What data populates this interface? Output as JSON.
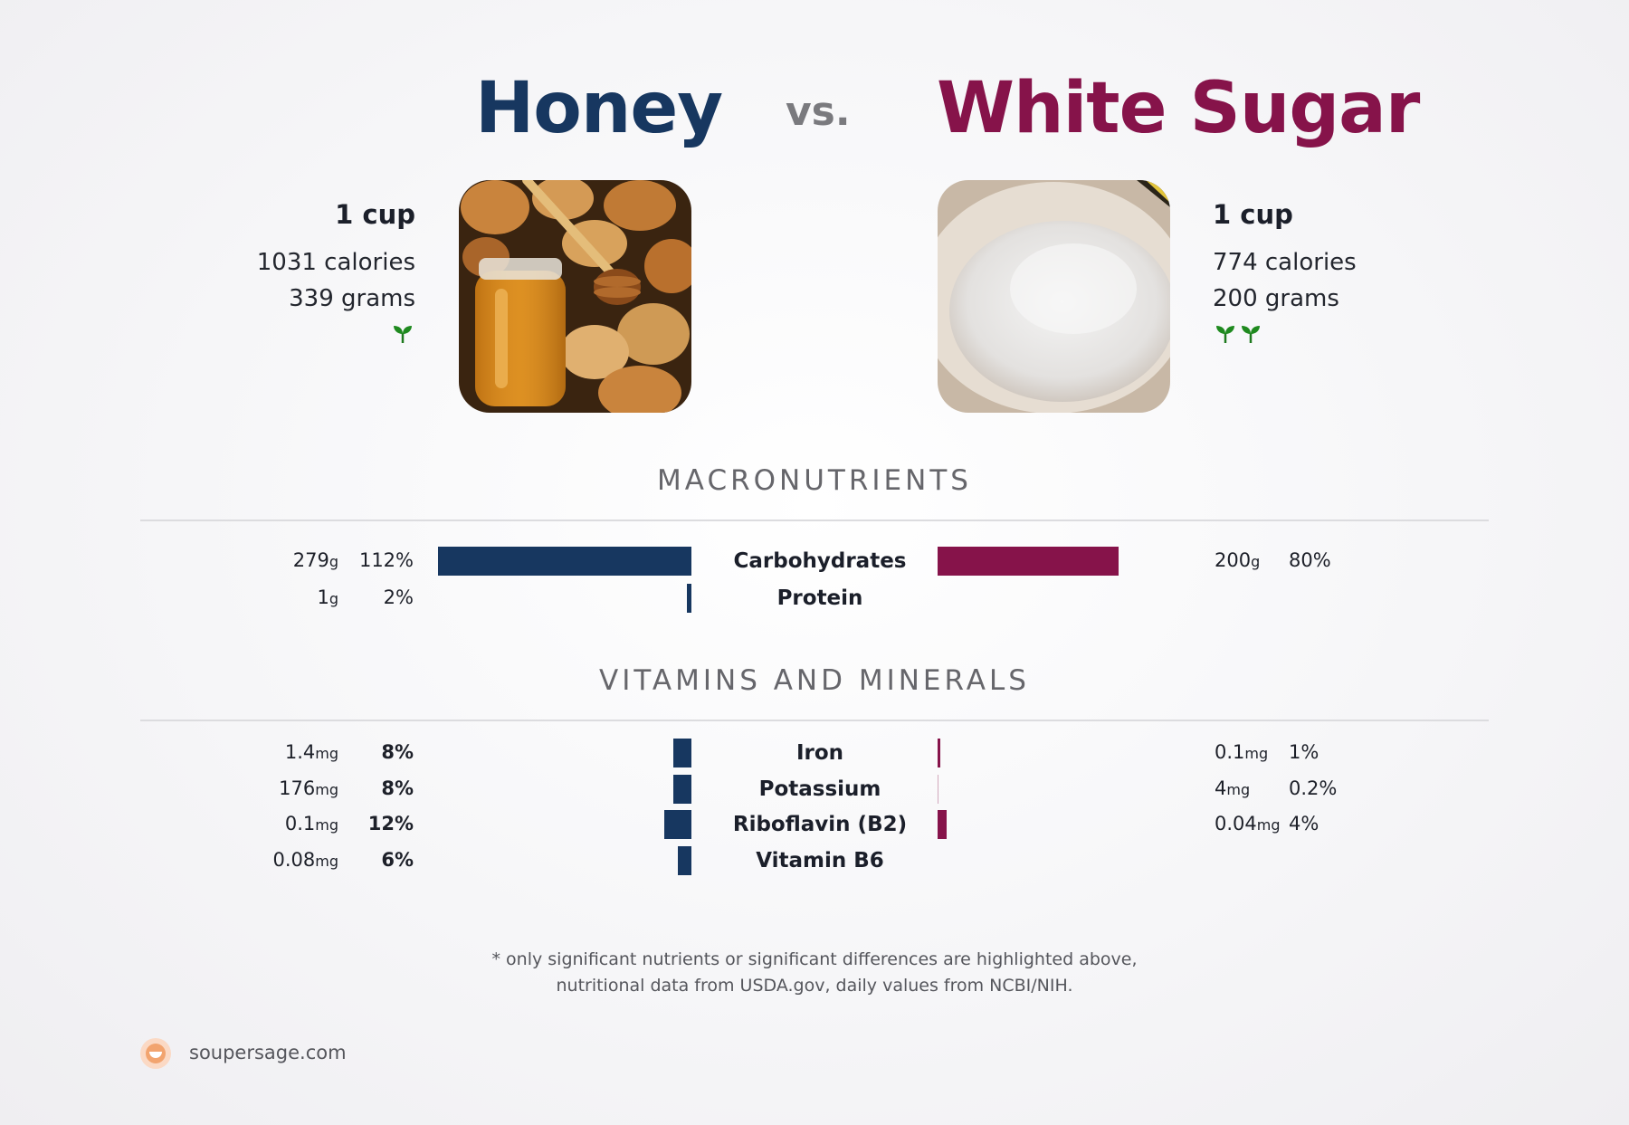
{
  "header": {
    "left_food": "Honey",
    "vs": "vs.",
    "right_food": "White Sugar"
  },
  "colors": {
    "left": "#173760",
    "right": "#86134a"
  },
  "left": {
    "serving": "1 cup",
    "calories": "1031 calories",
    "grams": "339 grams",
    "sprouts": 1,
    "image": "honey-jar-with-biscuits"
  },
  "right": {
    "serving": "1 cup",
    "calories": "774 calories",
    "grams": "200 grams",
    "sprouts": 2,
    "image": "bowl-of-white-sugar"
  },
  "sections": {
    "macros_title": "MACRONUTRIENTS",
    "vitamins_title": "VITAMINS AND MINERALS"
  },
  "chart_data": [
    {
      "type": "bar",
      "title": "MACRONUTRIENTS",
      "categories": [
        "Carbohydrates",
        "Protein"
      ],
      "series": [
        {
          "name": "Honey",
          "amount": [
            "279",
            "1"
          ],
          "unit": [
            "g",
            "g"
          ],
          "percent_labels": [
            "112%",
            "2%"
          ],
          "values": [
            112,
            2
          ]
        },
        {
          "name": "White Sugar",
          "amount": [
            "200",
            ""
          ],
          "unit": [
            "g",
            ""
          ],
          "percent_labels": [
            "80%",
            ""
          ],
          "values": [
            80,
            0
          ]
        }
      ]
    },
    {
      "type": "bar",
      "title": "VITAMINS AND MINERALS",
      "categories": [
        "Iron",
        "Potassium",
        "Riboflavin (B2)",
        "Vitamin B6"
      ],
      "series": [
        {
          "name": "Honey",
          "amount": [
            "1.4",
            "176",
            "0.1",
            "0.08"
          ],
          "unit": [
            "mg",
            "mg",
            "mg",
            "mg"
          ],
          "percent_labels": [
            "8%",
            "8%",
            "12%",
            "6%"
          ],
          "values": [
            8,
            8,
            12,
            6
          ]
        },
        {
          "name": "White Sugar",
          "amount": [
            "0.1",
            "4",
            "0.04",
            ""
          ],
          "unit": [
            "mg",
            "mg",
            "mg",
            ""
          ],
          "percent_labels": [
            "1%",
            "0.2%",
            "4%",
            ""
          ],
          "values": [
            1,
            0.2,
            4,
            0
          ]
        }
      ]
    }
  ],
  "footnote": {
    "line1": "* only significant nutrients or significant differences are highlighted above,",
    "line2": "nutritional data from USDA.gov, daily values from NCBI/NIH."
  },
  "brand": {
    "name": "soupersage.com"
  }
}
